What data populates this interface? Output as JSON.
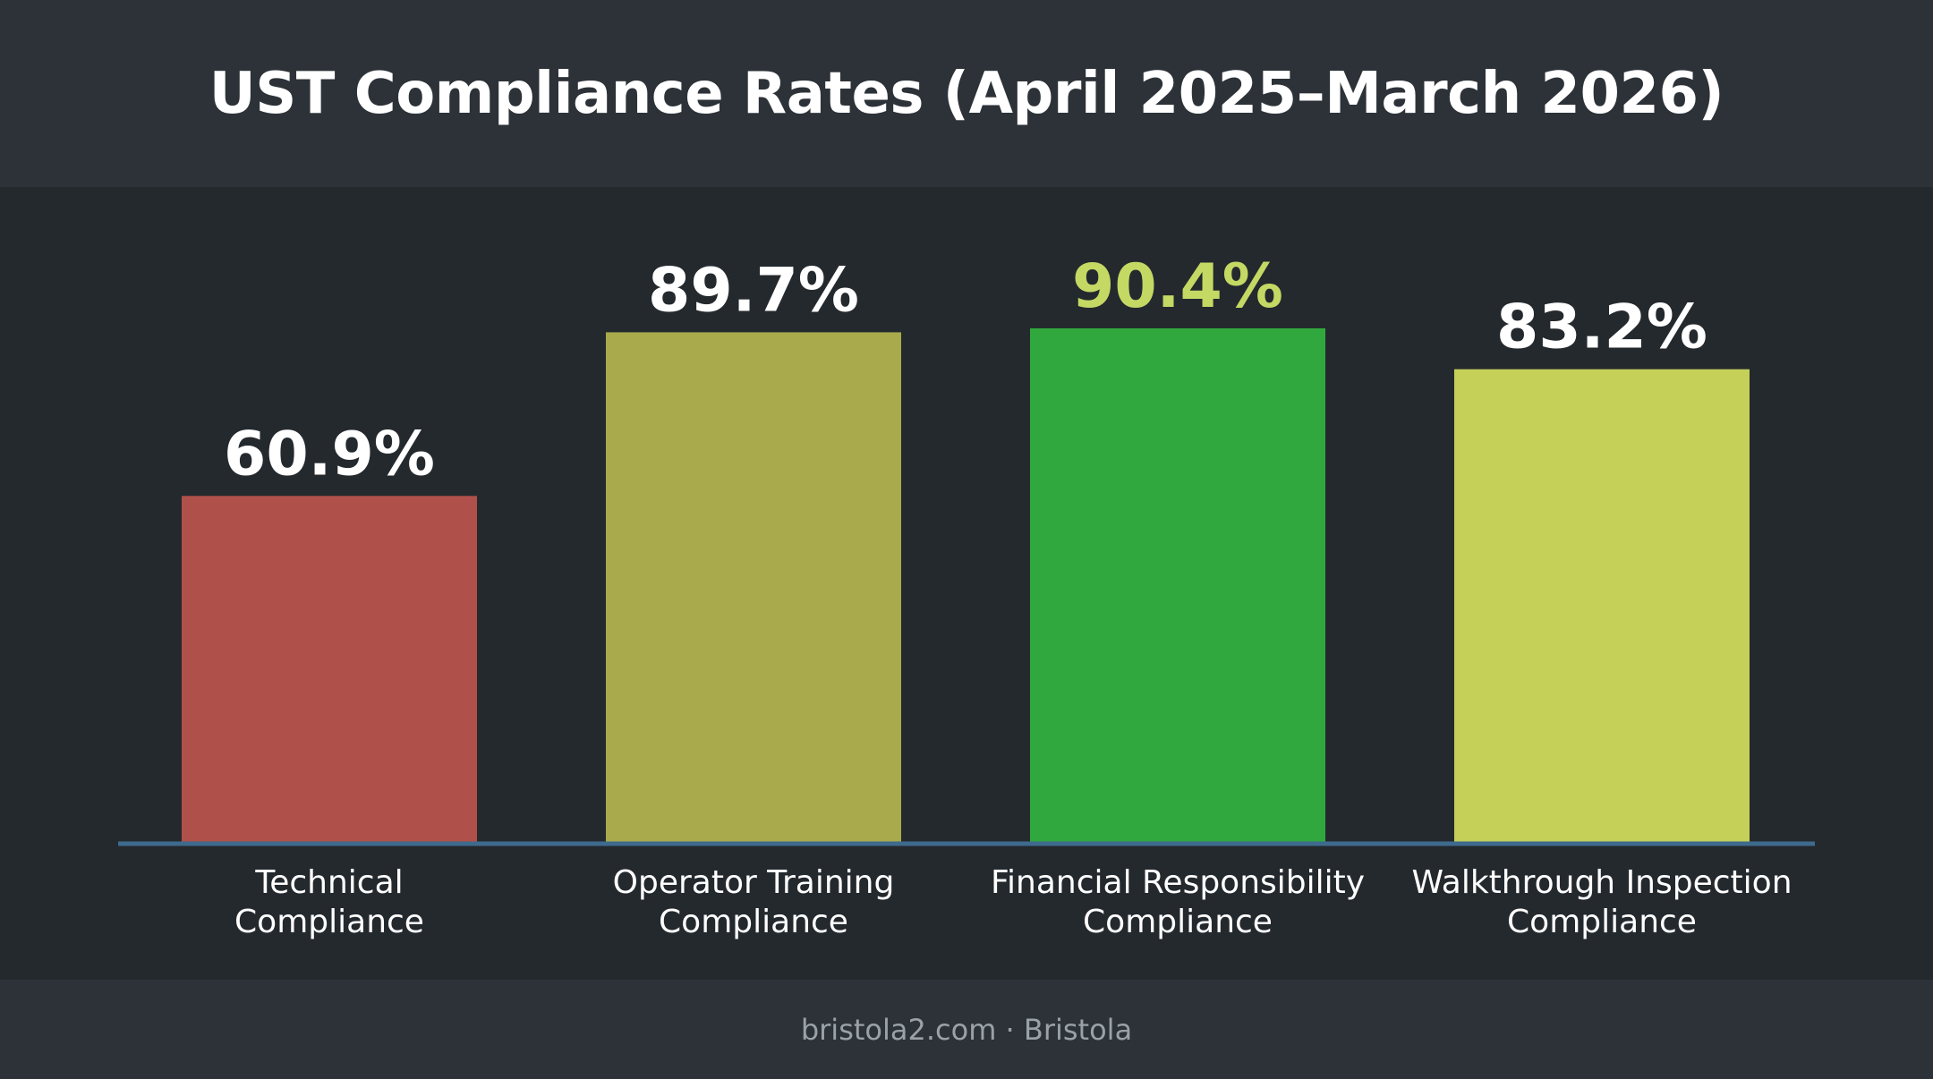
{
  "header": {
    "title": "UST Compliance Rates (April 2025–March 2026)"
  },
  "footer": {
    "text": "bristola2.com · Bristola"
  },
  "chart_data": {
    "type": "bar",
    "title": "UST Compliance Rates (April 2025–March 2026)",
    "xlabel": "",
    "ylabel": "",
    "ylim": [
      0,
      100
    ],
    "grid": false,
    "categories": [
      [
        "Technical",
        "Compliance"
      ],
      [
        "Operator Training",
        "Compliance"
      ],
      [
        "Financial Responsibility",
        "Compliance"
      ],
      [
        "Walkthrough Inspection",
        "Compliance"
      ]
    ],
    "values": [
      60.9,
      89.7,
      90.4,
      83.2
    ],
    "data_labels": [
      "60.9%",
      "89.7%",
      "90.4%",
      "83.2%"
    ],
    "colors": [
      "#b0504a",
      "#a8aa4c",
      "#31a83e",
      "#c4d058"
    ],
    "label_colors": [
      "#ffffff",
      "#ffffff",
      "#c4d864",
      "#ffffff"
    ],
    "baseline_color": "#3e6a8e"
  }
}
